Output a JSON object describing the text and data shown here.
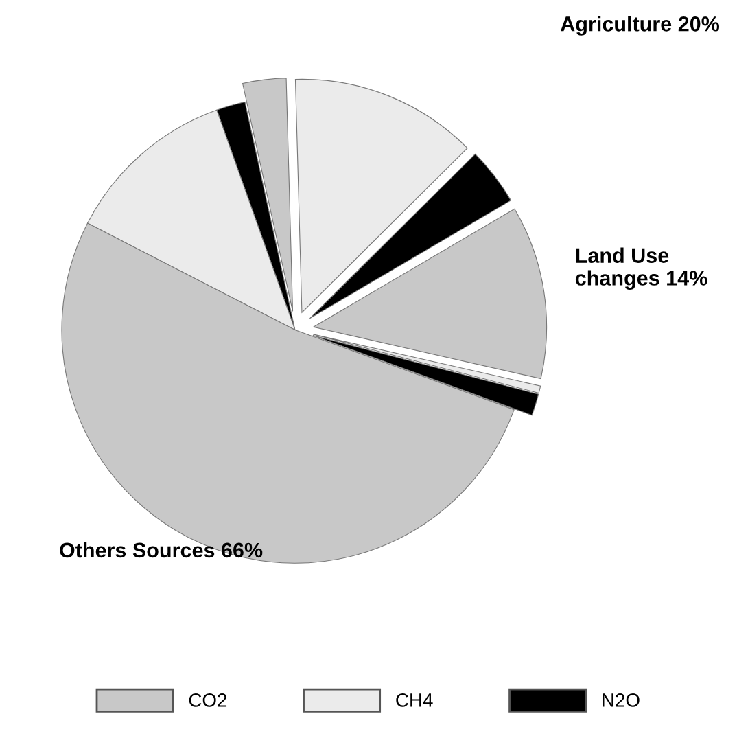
{
  "chart_data": {
    "type": "pie",
    "categories": [
      "N2O",
      "CH4",
      "CO2",
      null,
      null,
      null,
      null,
      null,
      null
    ],
    "values": [
      1.5,
      0.5,
      12,
      4,
      13,
      3,
      2,
      12,
      52
    ],
    "colors": [
      "#000000",
      "#ebebeb",
      "#c8c8c8",
      "#000000",
      "#ebebeb",
      "#c8c8c8",
      "#000000",
      "#ebebeb",
      "#c8c8c8"
    ],
    "annotations": [
      "Land Use\nchanges 14%",
      "Agriculture 20%",
      "Others Sources 66%"
    ],
    "legend": "bottom"
  }
}
